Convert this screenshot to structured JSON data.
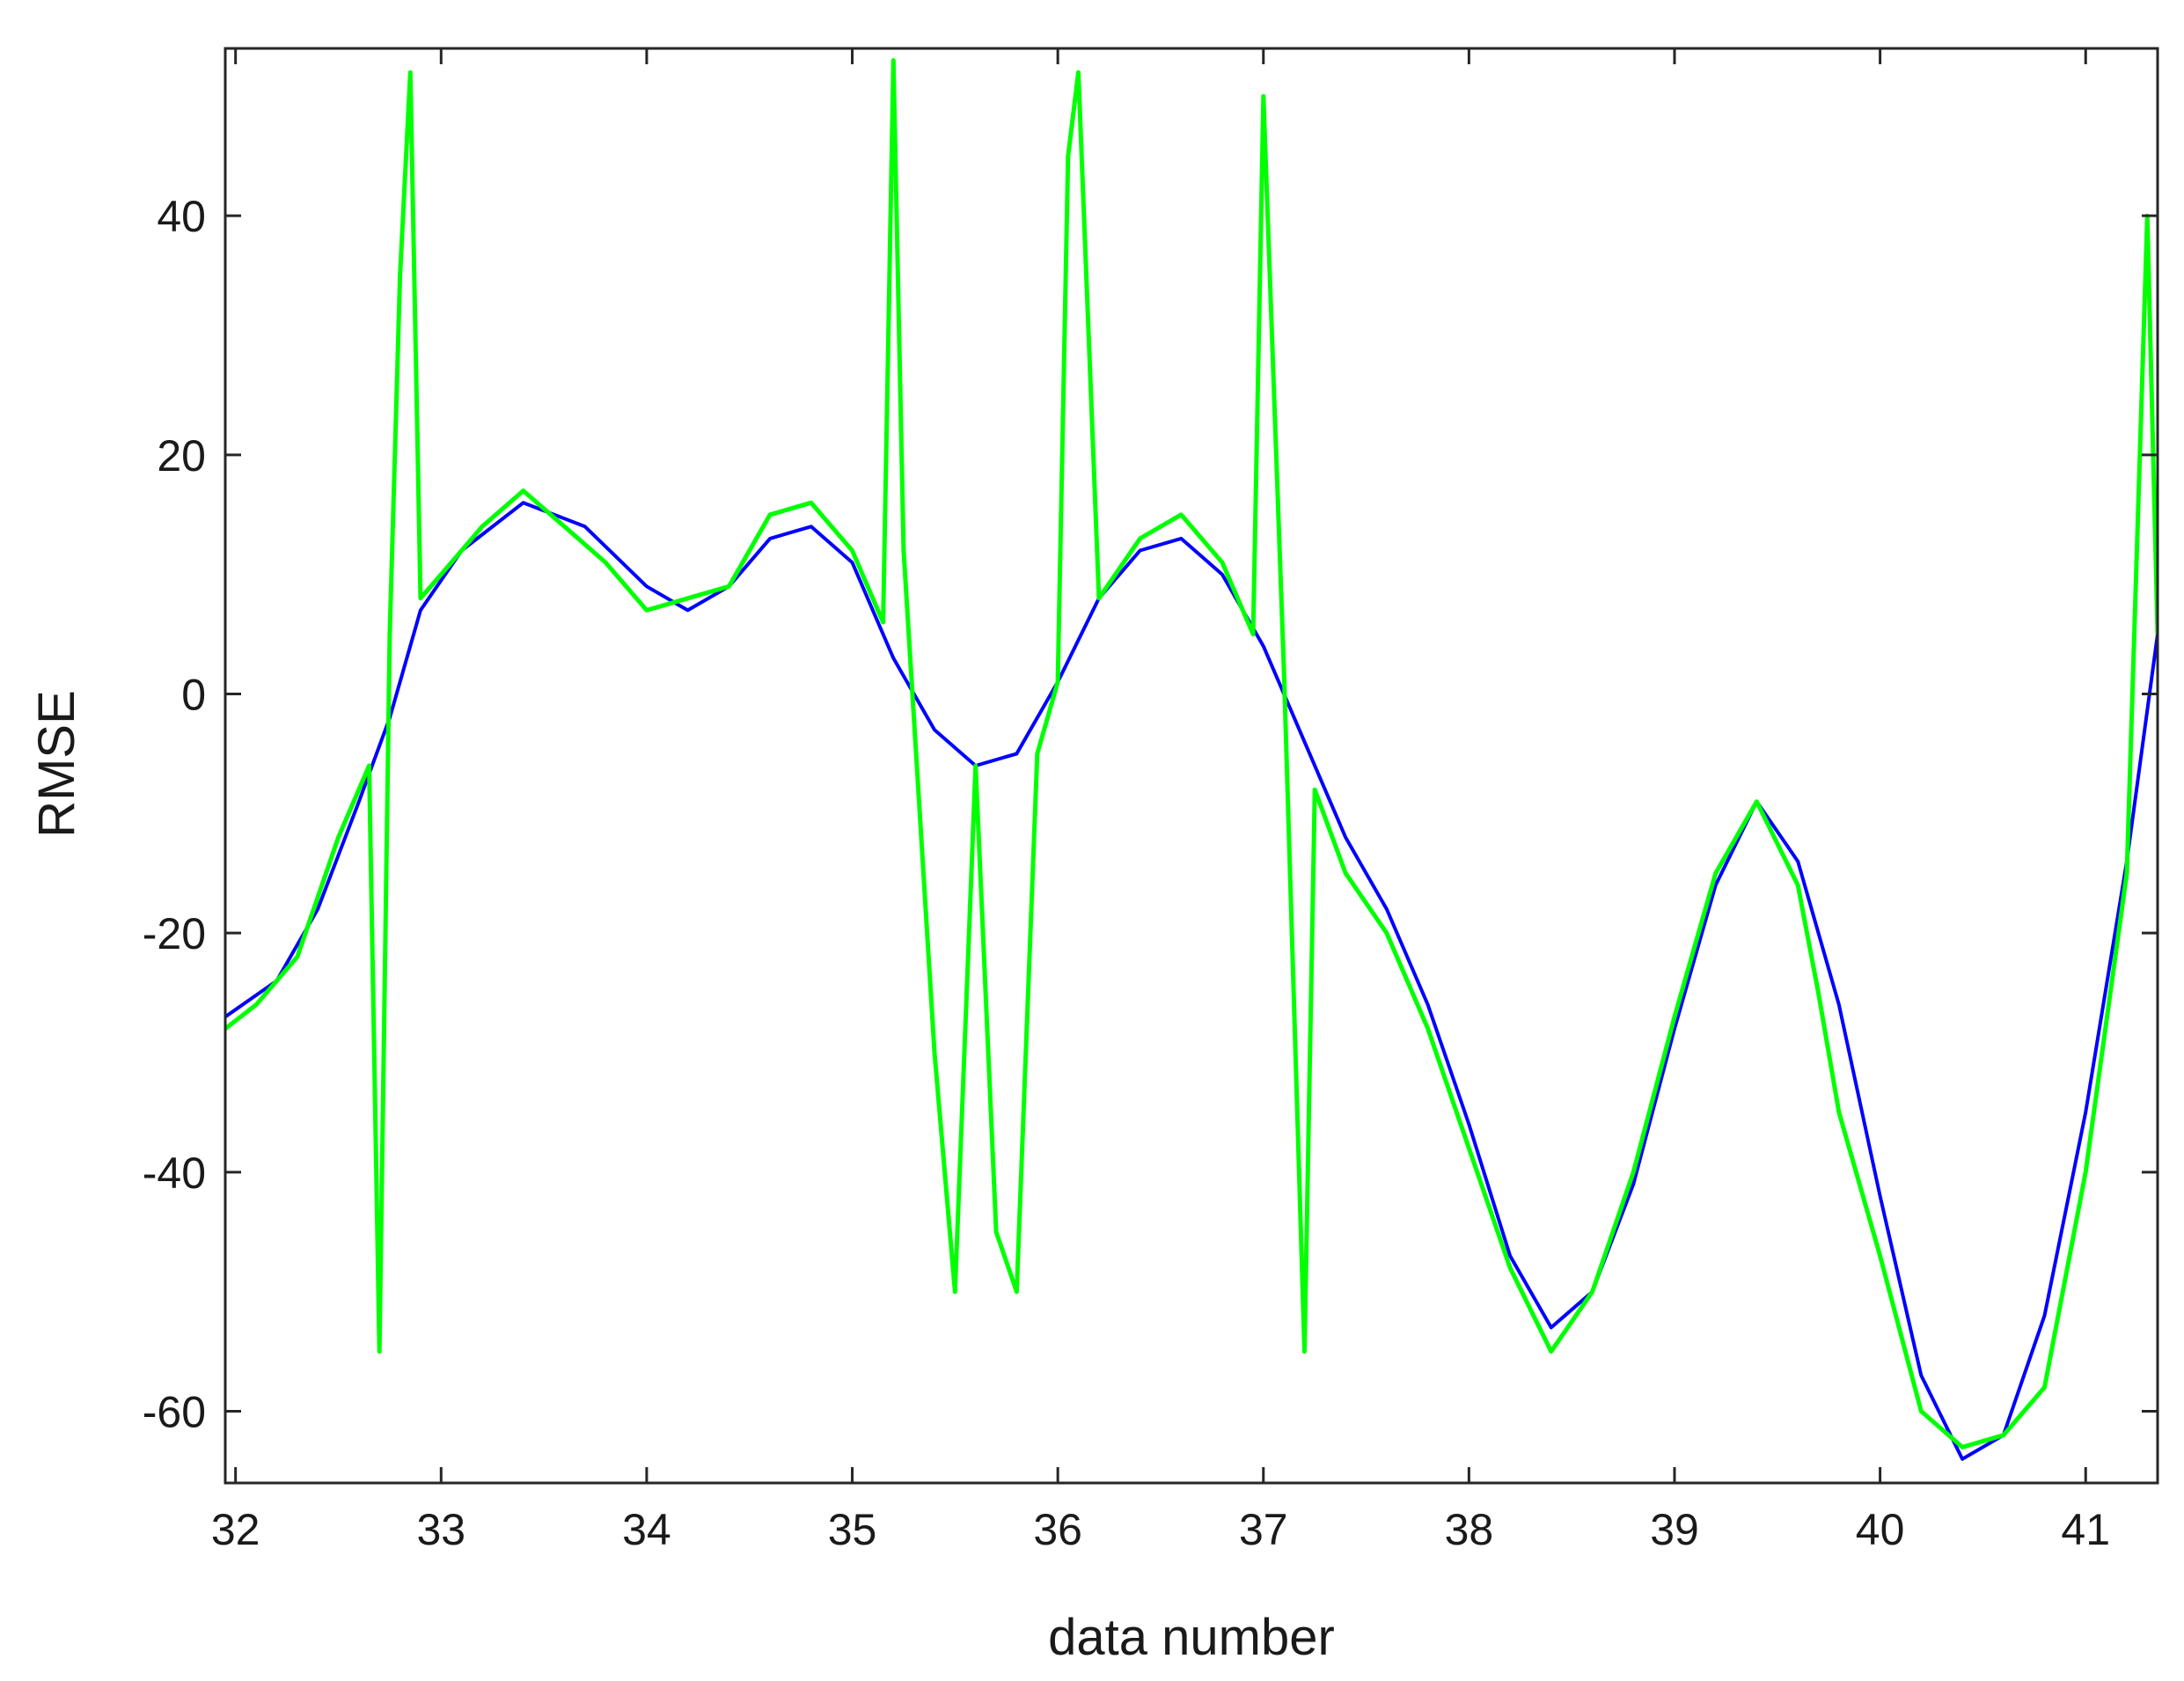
{
  "chart_data": {
    "type": "line",
    "title": "",
    "xlabel": "data number",
    "ylabel": "RMSE",
    "xlim": [
      31.95,
      41.35
    ],
    "ylim": [
      -66,
      54
    ],
    "x_ticks": [
      32,
      33,
      34,
      35,
      36,
      37,
      38,
      39,
      40,
      41
    ],
    "x_tick_labels": [
      "32",
      "33",
      "34",
      "35",
      "36",
      "37",
      "38",
      "39",
      "40",
      "41"
    ],
    "y_ticks": [
      -60,
      -40,
      -20,
      0,
      20,
      40
    ],
    "y_tick_labels": [
      "-60",
      "-40",
      "-20",
      "0",
      "20",
      "40"
    ],
    "grid": false,
    "legend": "none",
    "series": [
      {
        "color": "#0000ff",
        "x": [
          31.95,
          32.2,
          32.4,
          32.6,
          32.75,
          32.9,
          33.1,
          33.4,
          33.7,
          34.0,
          34.2,
          34.4,
          34.6,
          34.8,
          35.0,
          35.2,
          35.4,
          35.6,
          35.8,
          36.0,
          36.2,
          36.4,
          36.6,
          36.8,
          37.0,
          37.2,
          37.4,
          37.6,
          37.8,
          38.0,
          38.2,
          38.4,
          38.6,
          38.8,
          39.0,
          39.2,
          39.4,
          39.6,
          39.8,
          40.0,
          40.2,
          40.4,
          40.6,
          40.8,
          41.0,
          41.2,
          41.35
        ],
        "values": [
          -27,
          -24,
          -18,
          -9,
          -2,
          7,
          12,
          16,
          14,
          9,
          7,
          9,
          13,
          14,
          11,
          3,
          -3,
          -6,
          -5,
          1,
          8,
          12,
          13,
          10,
          4,
          -4,
          -12,
          -18,
          -26,
          -36,
          -47,
          -53,
          -50,
          -41,
          -28,
          -16,
          -9,
          -14,
          -26,
          -42,
          -57,
          -64,
          -62,
          -52,
          -35,
          -14,
          5
        ]
      },
      {
        "color": "#00ff00",
        "x": [
          31.95,
          32.1,
          32.3,
          32.5,
          32.65,
          32.7,
          32.75,
          32.8,
          32.85,
          32.9,
          33.0,
          33.2,
          33.4,
          33.6,
          33.8,
          34.0,
          34.2,
          34.4,
          34.6,
          34.8,
          35.0,
          35.15,
          35.2,
          35.25,
          35.3,
          35.4,
          35.5,
          35.6,
          35.7,
          35.8,
          35.9,
          36.0,
          36.05,
          36.1,
          36.2,
          36.4,
          36.6,
          36.8,
          36.95,
          37.0,
          37.1,
          37.2,
          37.25,
          37.4,
          37.6,
          37.8,
          38.0,
          38.2,
          38.4,
          38.6,
          38.8,
          39.0,
          39.2,
          39.4,
          39.6,
          39.7,
          39.8,
          40.0,
          40.2,
          40.4,
          40.6,
          40.8,
          41.0,
          41.2,
          41.3,
          41.35
        ],
        "values": [
          -28,
          -26,
          -22,
          -12,
          -6,
          -55,
          5,
          35,
          52,
          8,
          10,
          14,
          17,
          14,
          11,
          7,
          8,
          9,
          15,
          16,
          12,
          6,
          53,
          12,
          -2,
          -30,
          -50,
          -6,
          -45,
          -50,
          -5,
          1,
          45,
          52,
          8,
          13,
          15,
          11,
          5,
          50,
          2,
          -55,
          -8,
          -15,
          -20,
          -28,
          -38,
          -48,
          -55,
          -50,
          -40,
          -27,
          -15,
          -9,
          -16,
          -25,
          -35,
          -47,
          -60,
          -63,
          -62,
          -58,
          -40,
          -15,
          40,
          5
        ]
      }
    ]
  }
}
